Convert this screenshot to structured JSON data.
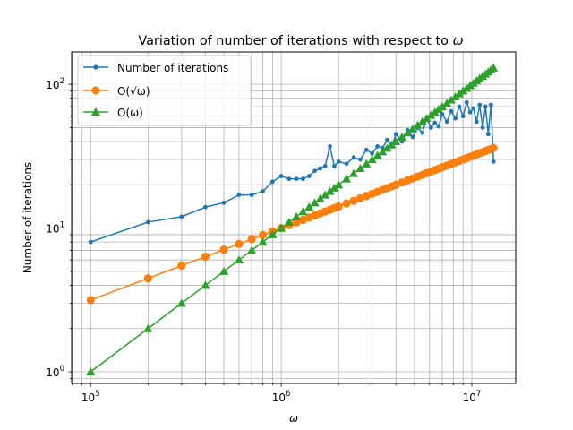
{
  "chart_data": {
    "type": "line",
    "title_prefix": "Variation of number of iterations with respect to ",
    "title_symbol": "ω",
    "xlabel": "ω",
    "ylabel": "Number of iterations",
    "x_scale": "log",
    "y_scale": "log",
    "xlim": [
      79432,
      17000000
    ],
    "ylim": [
      0.83,
      168
    ],
    "grid": "major and minor",
    "legend_position": "top-left",
    "x_ticks": [
      {
        "value": 100000,
        "base": "10",
        "exp": "5"
      },
      {
        "value": 1000000,
        "base": "10",
        "exp": "6"
      },
      {
        "value": 10000000,
        "base": "10",
        "exp": "7"
      }
    ],
    "y_ticks": [
      {
        "value": 1,
        "base": "10",
        "exp": "0"
      },
      {
        "value": 10,
        "base": "10",
        "exp": "1"
      },
      {
        "value": 100,
        "base": "10",
        "exp": "2"
      }
    ],
    "series": [
      {
        "name": "Number of iterations",
        "color": "#1f77b4",
        "marker": "dot",
        "x": [
          100000,
          200000,
          300000,
          400000,
          500000,
          600000,
          700000,
          800000,
          900000,
          1000000,
          1100000,
          1200000,
          1300000,
          1400000,
          1500000,
          1600000,
          1700000,
          1800000,
          1900000,
          2000000,
          2200000,
          2400000,
          2600000,
          2800000,
          3000000,
          3200000,
          3400000,
          3600000,
          3800000,
          4000000,
          4300000,
          4600000,
          4900000,
          5200000,
          5500000,
          5800000,
          6100000,
          6400000,
          6700000,
          7000000,
          7400000,
          7800000,
          8200000,
          8600000,
          9000000,
          9400000,
          9800000,
          10200000,
          10600000,
          11000000,
          11400000,
          11800000,
          12200000,
          12600000,
          13000000
        ],
        "y": [
          8,
          11,
          12,
          14,
          15,
          17,
          17,
          18,
          21,
          23,
          22,
          22,
          22,
          23,
          25,
          26,
          27,
          37,
          27,
          29,
          28,
          31,
          30,
          35,
          33,
          37,
          36,
          41,
          37,
          45,
          40,
          48,
          43,
          50,
          46,
          58,
          50,
          54,
          51,
          62,
          55,
          65,
          58,
          70,
          60,
          75,
          64,
          68,
          55,
          72,
          50,
          70,
          45,
          72,
          29
        ]
      },
      {
        "name": "O(√ω)",
        "color": "#ff7f0e",
        "marker": "circle",
        "x": [
          100000,
          200000,
          300000,
          400000,
          500000,
          600000,
          700000,
          800000,
          900000,
          1000000,
          1100000,
          1200000,
          1300000,
          1400000,
          1500000,
          1600000,
          1700000,
          1800000,
          1900000,
          2000000,
          2200000,
          2400000,
          2600000,
          2800000,
          3000000,
          3200000,
          3400000,
          3600000,
          3800000,
          4000000,
          4300000,
          4600000,
          4900000,
          5200000,
          5500000,
          5800000,
          6100000,
          6400000,
          6700000,
          7000000,
          7400000,
          7800000,
          8200000,
          8600000,
          9000000,
          9400000,
          9800000,
          10200000,
          10600000,
          11000000,
          11400000,
          11800000,
          12200000,
          12600000,
          13000000
        ],
        "y": [
          3.16,
          4.47,
          5.48,
          6.32,
          7.07,
          7.75,
          8.37,
          8.94,
          9.49,
          10.0,
          10.49,
          10.95,
          11.4,
          11.83,
          12.25,
          12.65,
          13.04,
          13.42,
          13.78,
          14.14,
          14.83,
          15.49,
          16.12,
          16.73,
          17.32,
          17.89,
          18.44,
          18.97,
          19.49,
          20.0,
          20.74,
          21.45,
          22.14,
          22.8,
          23.45,
          24.08,
          24.7,
          25.3,
          25.88,
          26.46,
          27.2,
          27.93,
          28.64,
          29.33,
          30.0,
          30.66,
          31.3,
          31.94,
          32.56,
          33.17,
          33.76,
          34.35,
          34.93,
          35.5,
          36.06
        ]
      },
      {
        "name": "O(ω)",
        "color": "#2ca02c",
        "marker": "triangle",
        "x": [
          100000,
          200000,
          300000,
          400000,
          500000,
          600000,
          700000,
          800000,
          900000,
          1000000,
          1100000,
          1200000,
          1300000,
          1400000,
          1500000,
          1600000,
          1700000,
          1800000,
          1900000,
          2000000,
          2200000,
          2400000,
          2600000,
          2800000,
          3000000,
          3200000,
          3400000,
          3600000,
          3800000,
          4000000,
          4300000,
          4600000,
          4900000,
          5200000,
          5500000,
          5800000,
          6100000,
          6400000,
          6700000,
          7000000,
          7400000,
          7800000,
          8200000,
          8600000,
          9000000,
          9400000,
          9800000,
          10200000,
          10600000,
          11000000,
          11400000,
          11800000,
          12200000,
          12600000,
          13000000
        ],
        "y": [
          1,
          2,
          3,
          4,
          5,
          6,
          7,
          8,
          9,
          10,
          11,
          12,
          13,
          14,
          15,
          16,
          17,
          18,
          19,
          20,
          22,
          24,
          26,
          28,
          30,
          32,
          34,
          36,
          38,
          40,
          43,
          46,
          49,
          52,
          55,
          58,
          61,
          64,
          67,
          70,
          74,
          78,
          82,
          86,
          90,
          94,
          98,
          102,
          106,
          110,
          114,
          118,
          122,
          126,
          130
        ]
      }
    ]
  }
}
